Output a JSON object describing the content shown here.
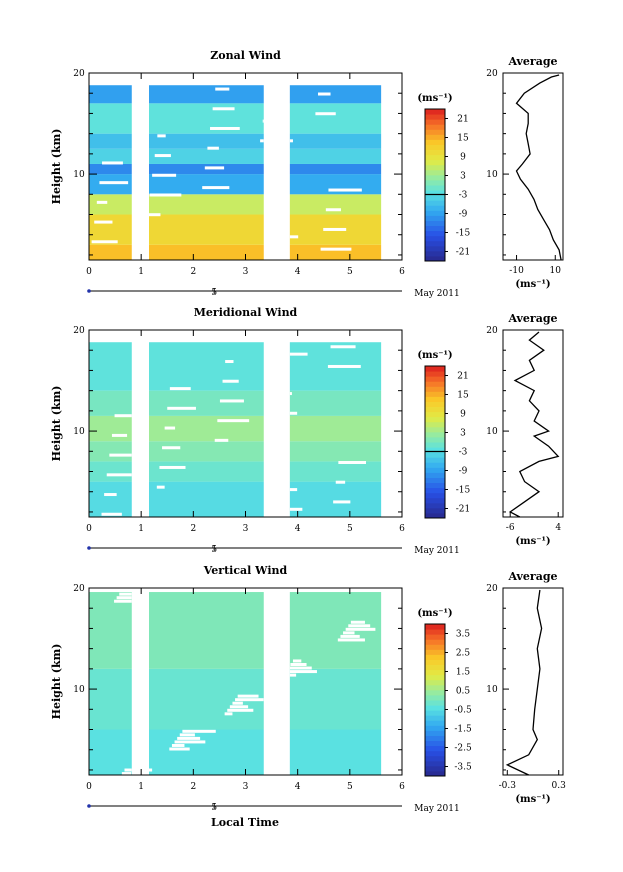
{
  "figure": {
    "date_label": "May 2011",
    "xlabel": "Local Time",
    "date_axis": {
      "ticks": [
        "5"
      ],
      "range": [
        4.2,
        6.2
      ]
    }
  },
  "chart_data": [
    {
      "type": "heatmap",
      "title": "Zonal Wind",
      "ylabel": "Height (km)",
      "xlim": [
        0,
        6
      ],
      "ylim": [
        1.5,
        20
      ],
      "x_ticks": [
        "0",
        "1",
        "2",
        "3",
        "4",
        "5",
        "6"
      ],
      "y_ticks": [
        10,
        20
      ],
      "data_gaps": [
        [
          0.82,
          1.15
        ],
        [
          3.35,
          3.85
        ],
        [
          5.6,
          6.0
        ]
      ],
      "data_top_km": 18.8,
      "field": [
        {
          "from": 1.5,
          "to": 3.0,
          "value": 14
        },
        {
          "from": 3.0,
          "to": 6.0,
          "value": 11
        },
        {
          "from": 6.0,
          "to": 8.0,
          "value": 6
        },
        {
          "from": 8.0,
          "to": 10.0,
          "value": -8
        },
        {
          "from": 10.0,
          "to": 11.0,
          "value": -11
        },
        {
          "from": 11.0,
          "to": 12.5,
          "value": -4
        },
        {
          "from": 12.5,
          "to": 14.0,
          "value": -6
        },
        {
          "from": 14.0,
          "to": 17.0,
          "value": -2
        },
        {
          "from": 17.0,
          "to": 18.8,
          "value": -9
        }
      ],
      "colorbar": {
        "unit": "(ms⁻¹)",
        "ticks": [
          "21",
          "15",
          "9",
          "3",
          "-3",
          "-9",
          "-15",
          "-21"
        ],
        "range": [
          -24,
          24
        ],
        "zero_line": true
      },
      "average": {
        "title": "Average",
        "xlabel": "(ms⁻¹)",
        "x_ticks": [
          "-10",
          "10"
        ],
        "xlim": [
          -17,
          14
        ],
        "y_ticks": [
          10,
          20
        ],
        "profile": [
          [
            13,
            1.5
          ],
          [
            12,
            2.5
          ],
          [
            9,
            3.5
          ],
          [
            7,
            4.5
          ],
          [
            4,
            5.5
          ],
          [
            1,
            6.5
          ],
          [
            -1,
            7.5
          ],
          [
            -4,
            8.5
          ],
          [
            -8,
            9.5
          ],
          [
            -10,
            10.3
          ],
          [
            -7,
            11
          ],
          [
            -3,
            12
          ],
          [
            -4,
            13
          ],
          [
            -5,
            14
          ],
          [
            -4,
            15
          ],
          [
            -4,
            16
          ],
          [
            -10,
            17
          ],
          [
            -6,
            18
          ],
          [
            2,
            19
          ],
          [
            8,
            19.6
          ],
          [
            12,
            19.8
          ]
        ]
      }
    },
    {
      "type": "heatmap",
      "title": "Meridional Wind",
      "ylabel": "Height (km)",
      "xlim": [
        0,
        6
      ],
      "ylim": [
        1.5,
        20
      ],
      "x_ticks": [
        "0",
        "1",
        "2",
        "3",
        "4",
        "5",
        "6"
      ],
      "y_ticks": [
        10,
        20
      ],
      "data_gaps": [
        [
          0.82,
          1.15
        ],
        [
          3.35,
          3.85
        ],
        [
          5.6,
          6.0
        ]
      ],
      "data_top_km": 18.8,
      "field": [
        {
          "from": 1.5,
          "to": 5.0,
          "value": -3
        },
        {
          "from": 5.0,
          "to": 7.0,
          "value": -1
        },
        {
          "from": 7.0,
          "to": 9.0,
          "value": 1
        },
        {
          "from": 9.0,
          "to": 11.5,
          "value": 3
        },
        {
          "from": 11.5,
          "to": 14.0,
          "value": 0
        },
        {
          "from": 14.0,
          "to": 18.8,
          "value": -2
        }
      ],
      "colorbar": {
        "unit": "(ms⁻¹)",
        "ticks": [
          "21",
          "15",
          "9",
          "3",
          "-3",
          "-9",
          "-15",
          "-21"
        ],
        "range": [
          -24,
          24
        ],
        "zero_line": true
      },
      "average": {
        "title": "Average",
        "xlabel": "(ms⁻¹)",
        "x_ticks": [
          "-6",
          "4"
        ],
        "xlim": [
          -7.5,
          5
        ],
        "y_ticks": [
          10,
          20
        ],
        "profile": [
          [
            -4,
            1.5
          ],
          [
            -6,
            2
          ],
          [
            -3,
            3
          ],
          [
            0,
            4
          ],
          [
            -3,
            5
          ],
          [
            -4,
            6
          ],
          [
            0,
            7
          ],
          [
            4,
            7.5
          ],
          [
            2,
            8.5
          ],
          [
            -1,
            9.5
          ],
          [
            2,
            10
          ],
          [
            -1,
            11
          ],
          [
            0,
            12
          ],
          [
            -2,
            13
          ],
          [
            -1,
            14
          ],
          [
            -5,
            15
          ],
          [
            -1,
            16
          ],
          [
            -2,
            17
          ],
          [
            1,
            18
          ],
          [
            -2,
            19
          ],
          [
            0,
            19.8
          ]
        ]
      }
    },
    {
      "type": "heatmap",
      "title": "Vertical Wind",
      "ylabel": "Height (km)",
      "xlabel": "Local Time",
      "xlim": [
        0,
        6
      ],
      "ylim": [
        1.5,
        20
      ],
      "x_ticks": [
        "0",
        "1",
        "2",
        "3",
        "4",
        "5",
        "6"
      ],
      "y_ticks": [
        10,
        20
      ],
      "data_gaps": [
        [
          0.82,
          1.15
        ],
        [
          3.35,
          3.85
        ],
        [
          5.6,
          6.0
        ]
      ],
      "data_top_km": 19.6,
      "field": [
        {
          "from": 1.5,
          "to": 6.0,
          "value": -0.4
        },
        {
          "from": 6.0,
          "to": 12.0,
          "value": -0.2
        },
        {
          "from": 12.0,
          "to": 19.6,
          "value": 0.1
        }
      ],
      "colorbar": {
        "unit": "(ms⁻¹)",
        "ticks": [
          "3.5",
          "2.5",
          "1.5",
          "0.5",
          "-0.5",
          "-1.5",
          "-2.5",
          "-3.5"
        ],
        "range": [
          -4,
          4
        ],
        "zero_line": false
      },
      "average": {
        "title": "Average",
        "xlabel": "(ms⁻¹)",
        "x_ticks": [
          "-0.3",
          "0.3"
        ],
        "xlim": [
          -0.35,
          0.35
        ],
        "y_ticks": [
          10,
          20
        ],
        "profile": [
          [
            -0.05,
            1.5
          ],
          [
            -0.3,
            2.5
          ],
          [
            -0.05,
            3.5
          ],
          [
            0.05,
            5
          ],
          [
            0.0,
            6
          ],
          [
            0.02,
            8
          ],
          [
            0.05,
            10
          ],
          [
            0.08,
            12
          ],
          [
            0.05,
            14
          ],
          [
            0.1,
            16
          ],
          [
            0.05,
            18
          ],
          [
            0.08,
            19.8
          ]
        ]
      }
    }
  ]
}
